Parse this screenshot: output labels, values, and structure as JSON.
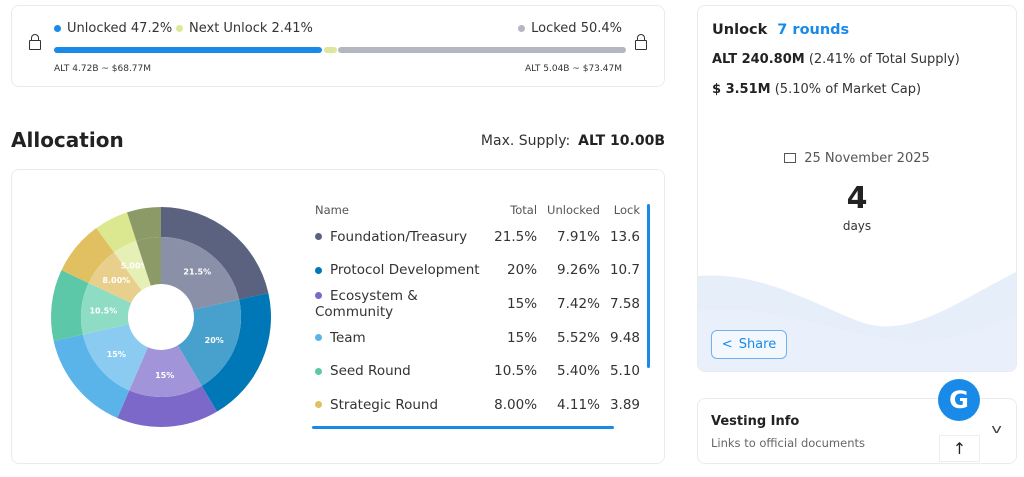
{
  "progress": {
    "unlocked_label": "Unlocked 47.2%",
    "next_label": "Next Unlock 2.41%",
    "locked_label": "Locked 50.4%",
    "unlocked_pct": 47.2,
    "next_pct": 2.41,
    "locked_pct": 50.4,
    "unlocked_amount": "ALT 4.72B ~ $68.77M",
    "locked_amount": "ALT 5.04B ~ $73.47M",
    "colors": {
      "unlocked": "#1a8ae8",
      "next": "#dbe89a",
      "locked": "#b4b7c0"
    }
  },
  "allocation": {
    "title": "Allocation",
    "max_supply_label": "Max. Supply:",
    "max_supply_value": "ALT 10.00B",
    "columns": [
      "Name",
      "Total",
      "Unlocked",
      "Lock"
    ],
    "rows": [
      {
        "name": "Foundation/Treasury",
        "total": "21.5%",
        "unlocked": "7.91%",
        "locked": "13.6",
        "color": "#5a6280"
      },
      {
        "name": "Protocol Development",
        "total": "20%",
        "unlocked": "9.26%",
        "locked": "10.7",
        "color": "#0077b6"
      },
      {
        "name": "Ecosystem & Community",
        "total": "15%",
        "unlocked": "7.42%",
        "locked": "7.58",
        "color": "#7b68c8"
      },
      {
        "name": "Team",
        "total": "15%",
        "unlocked": "5.52%",
        "locked": "9.48",
        "color": "#5ab4ea"
      },
      {
        "name": "Seed Round",
        "total": "10.5%",
        "unlocked": "5.40%",
        "locked": "5.10",
        "color": "#5cc8a8"
      },
      {
        "name": "Strategic Round",
        "total": "8.00%",
        "unlocked": "4.11%",
        "locked": "3.89",
        "color": "#e0c060"
      }
    ],
    "pie": [
      {
        "value": 21.5,
        "label": "21.5%",
        "color": "#5a6280",
        "inner": "#8a90a8"
      },
      {
        "value": 20,
        "label": "20%",
        "color": "#0077b6",
        "inner": "#48a0cc"
      },
      {
        "value": 15,
        "label": "15%",
        "color": "#7b68c8",
        "inner": "#a294d8"
      },
      {
        "value": 15,
        "label": "15%",
        "color": "#5ab4ea",
        "inner": "#8ccbf1"
      },
      {
        "value": 10.5,
        "label": "10.5%",
        "color": "#5cc8a8",
        "inner": "#8edcc4"
      },
      {
        "value": 8,
        "label": "8.00%",
        "color": "#e0c060",
        "inner": "#e8d08c"
      },
      {
        "value": 5,
        "label": "5.00%",
        "color": "#dce890",
        "inner": "#e6efb6"
      },
      {
        "value": 5,
        "label": "",
        "color": "#8c9a68",
        "inner": "#8c9a68"
      }
    ]
  },
  "unlock": {
    "title": "Unlock",
    "rounds": "7 rounds",
    "amount": "ALT 240.80M",
    "amount_note": "(2.41% of Total Supply)",
    "usd": "$ 3.51M",
    "usd_note": "(5.10% of Market Cap)",
    "date": "25 November 2025",
    "days": "4",
    "days_label": "days",
    "share": "Share"
  },
  "vesting": {
    "title": "Vesting Info",
    "subtitle": "Links to official documents"
  }
}
